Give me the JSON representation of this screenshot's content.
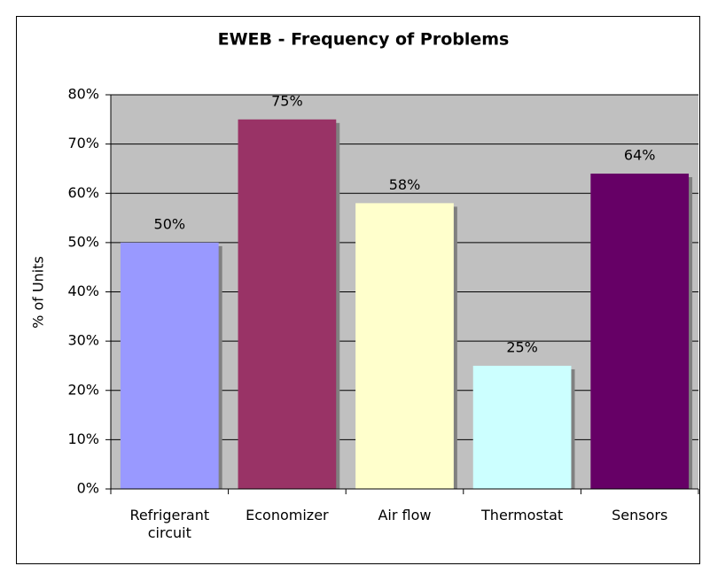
{
  "chart_data": {
    "type": "bar",
    "title": "EWEB - Frequency of Problems",
    "y_label": "% of Units",
    "categories": [
      "Refrigerant circuit",
      "Economizer",
      "Air flow",
      "Thermostat",
      "Sensors"
    ],
    "values": [
      50,
      75,
      58,
      25,
      64
    ],
    "value_labels": [
      "50%",
      "75%",
      "58%",
      "25%",
      "64%"
    ],
    "colors": [
      "#9999ff",
      "#993366",
      "#ffffcc",
      "#ccffff",
      "#660066"
    ],
    "ylim": [
      0,
      80
    ],
    "yticks": [
      {
        "value": 0,
        "label": "0%"
      },
      {
        "value": 10,
        "label": "10%"
      },
      {
        "value": 20,
        "label": "20%"
      },
      {
        "value": 30,
        "label": "30%"
      },
      {
        "value": 40,
        "label": "40%"
      },
      {
        "value": 50,
        "label": "50%"
      },
      {
        "value": 60,
        "label": "60%"
      },
      {
        "value": 70,
        "label": "70%"
      },
      {
        "value": 80,
        "label": "80%"
      }
    ],
    "grid": true,
    "plot_background": "#c0c0c0"
  }
}
